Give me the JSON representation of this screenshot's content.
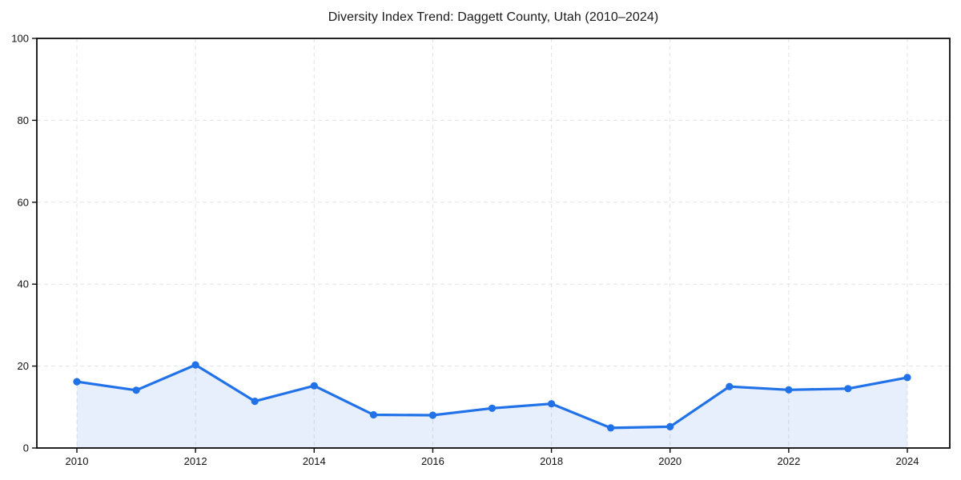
{
  "figure": {
    "background": "#ffffff"
  },
  "chart_data": {
    "type": "area",
    "title": "Diversity Index Trend: Daggett County, Utah (2010–2024)",
    "xlabel": "",
    "ylabel": "",
    "x": [
      2010,
      2011,
      2012,
      2013,
      2014,
      2015,
      2016,
      2017,
      2018,
      2019,
      2020,
      2021,
      2022,
      2023,
      2024
    ],
    "series": [
      {
        "name": "Diversity Index",
        "values": [
          16.2,
          14.1,
          20.3,
          11.4,
          15.2,
          8.1,
          8.0,
          9.7,
          10.8,
          4.9,
          5.2,
          15.0,
          14.2,
          14.5,
          17.2
        ]
      }
    ],
    "ylim": [
      0,
      100
    ],
    "yticks": [
      0,
      20,
      40,
      60,
      80,
      100
    ],
    "xticks": [
      2010,
      2012,
      2014,
      2016,
      2018,
      2020,
      2022,
      2024
    ],
    "grid": "dashed",
    "grid_color": "#e3e3e7",
    "legend": "none",
    "line_color": "#2171e8",
    "marker": "circle",
    "marker_color": "#2171e8",
    "fill_color": "rgba(33, 113, 232, 0.11)",
    "axis_color": "#0a0a0a"
  }
}
